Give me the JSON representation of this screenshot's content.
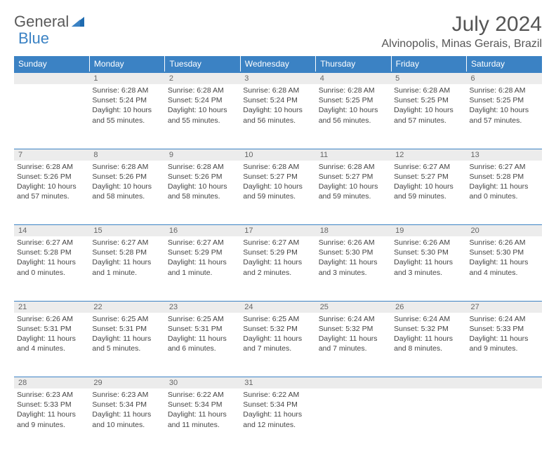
{
  "logo": {
    "text1": "General",
    "text2": "Blue"
  },
  "title": "July 2024",
  "location": "Alvinopolis, Minas Gerais, Brazil",
  "colors": {
    "header_bg": "#3b82c4",
    "header_text": "#ffffff",
    "daynum_bg": "#ececec",
    "border": "#3b82c4",
    "body_text": "#444444",
    "title_text": "#555555"
  },
  "typography": {
    "title_fontsize": 30,
    "location_fontsize": 16,
    "dayhead_fontsize": 12,
    "cell_fontsize": 10.5
  },
  "day_headers": [
    "Sunday",
    "Monday",
    "Tuesday",
    "Wednesday",
    "Thursday",
    "Friday",
    "Saturday"
  ],
  "weeks": [
    {
      "nums": [
        "",
        "1",
        "2",
        "3",
        "4",
        "5",
        "6"
      ],
      "cells": [
        null,
        {
          "sunrise": "Sunrise: 6:28 AM",
          "sunset": "Sunset: 5:24 PM",
          "daylight": "Daylight: 10 hours and 55 minutes."
        },
        {
          "sunrise": "Sunrise: 6:28 AM",
          "sunset": "Sunset: 5:24 PM",
          "daylight": "Daylight: 10 hours and 55 minutes."
        },
        {
          "sunrise": "Sunrise: 6:28 AM",
          "sunset": "Sunset: 5:24 PM",
          "daylight": "Daylight: 10 hours and 56 minutes."
        },
        {
          "sunrise": "Sunrise: 6:28 AM",
          "sunset": "Sunset: 5:25 PM",
          "daylight": "Daylight: 10 hours and 56 minutes."
        },
        {
          "sunrise": "Sunrise: 6:28 AM",
          "sunset": "Sunset: 5:25 PM",
          "daylight": "Daylight: 10 hours and 57 minutes."
        },
        {
          "sunrise": "Sunrise: 6:28 AM",
          "sunset": "Sunset: 5:25 PM",
          "daylight": "Daylight: 10 hours and 57 minutes."
        }
      ]
    },
    {
      "nums": [
        "7",
        "8",
        "9",
        "10",
        "11",
        "12",
        "13"
      ],
      "cells": [
        {
          "sunrise": "Sunrise: 6:28 AM",
          "sunset": "Sunset: 5:26 PM",
          "daylight": "Daylight: 10 hours and 57 minutes."
        },
        {
          "sunrise": "Sunrise: 6:28 AM",
          "sunset": "Sunset: 5:26 PM",
          "daylight": "Daylight: 10 hours and 58 minutes."
        },
        {
          "sunrise": "Sunrise: 6:28 AM",
          "sunset": "Sunset: 5:26 PM",
          "daylight": "Daylight: 10 hours and 58 minutes."
        },
        {
          "sunrise": "Sunrise: 6:28 AM",
          "sunset": "Sunset: 5:27 PM",
          "daylight": "Daylight: 10 hours and 59 minutes."
        },
        {
          "sunrise": "Sunrise: 6:28 AM",
          "sunset": "Sunset: 5:27 PM",
          "daylight": "Daylight: 10 hours and 59 minutes."
        },
        {
          "sunrise": "Sunrise: 6:27 AM",
          "sunset": "Sunset: 5:27 PM",
          "daylight": "Daylight: 10 hours and 59 minutes."
        },
        {
          "sunrise": "Sunrise: 6:27 AM",
          "sunset": "Sunset: 5:28 PM",
          "daylight": "Daylight: 11 hours and 0 minutes."
        }
      ]
    },
    {
      "nums": [
        "14",
        "15",
        "16",
        "17",
        "18",
        "19",
        "20"
      ],
      "cells": [
        {
          "sunrise": "Sunrise: 6:27 AM",
          "sunset": "Sunset: 5:28 PM",
          "daylight": "Daylight: 11 hours and 0 minutes."
        },
        {
          "sunrise": "Sunrise: 6:27 AM",
          "sunset": "Sunset: 5:28 PM",
          "daylight": "Daylight: 11 hours and 1 minute."
        },
        {
          "sunrise": "Sunrise: 6:27 AM",
          "sunset": "Sunset: 5:29 PM",
          "daylight": "Daylight: 11 hours and 1 minute."
        },
        {
          "sunrise": "Sunrise: 6:27 AM",
          "sunset": "Sunset: 5:29 PM",
          "daylight": "Daylight: 11 hours and 2 minutes."
        },
        {
          "sunrise": "Sunrise: 6:26 AM",
          "sunset": "Sunset: 5:30 PM",
          "daylight": "Daylight: 11 hours and 3 minutes."
        },
        {
          "sunrise": "Sunrise: 6:26 AM",
          "sunset": "Sunset: 5:30 PM",
          "daylight": "Daylight: 11 hours and 3 minutes."
        },
        {
          "sunrise": "Sunrise: 6:26 AM",
          "sunset": "Sunset: 5:30 PM",
          "daylight": "Daylight: 11 hours and 4 minutes."
        }
      ]
    },
    {
      "nums": [
        "21",
        "22",
        "23",
        "24",
        "25",
        "26",
        "27"
      ],
      "cells": [
        {
          "sunrise": "Sunrise: 6:26 AM",
          "sunset": "Sunset: 5:31 PM",
          "daylight": "Daylight: 11 hours and 4 minutes."
        },
        {
          "sunrise": "Sunrise: 6:25 AM",
          "sunset": "Sunset: 5:31 PM",
          "daylight": "Daylight: 11 hours and 5 minutes."
        },
        {
          "sunrise": "Sunrise: 6:25 AM",
          "sunset": "Sunset: 5:31 PM",
          "daylight": "Daylight: 11 hours and 6 minutes."
        },
        {
          "sunrise": "Sunrise: 6:25 AM",
          "sunset": "Sunset: 5:32 PM",
          "daylight": "Daylight: 11 hours and 7 minutes."
        },
        {
          "sunrise": "Sunrise: 6:24 AM",
          "sunset": "Sunset: 5:32 PM",
          "daylight": "Daylight: 11 hours and 7 minutes."
        },
        {
          "sunrise": "Sunrise: 6:24 AM",
          "sunset": "Sunset: 5:32 PM",
          "daylight": "Daylight: 11 hours and 8 minutes."
        },
        {
          "sunrise": "Sunrise: 6:24 AM",
          "sunset": "Sunset: 5:33 PM",
          "daylight": "Daylight: 11 hours and 9 minutes."
        }
      ]
    },
    {
      "nums": [
        "28",
        "29",
        "30",
        "31",
        "",
        "",
        ""
      ],
      "cells": [
        {
          "sunrise": "Sunrise: 6:23 AM",
          "sunset": "Sunset: 5:33 PM",
          "daylight": "Daylight: 11 hours and 9 minutes."
        },
        {
          "sunrise": "Sunrise: 6:23 AM",
          "sunset": "Sunset: 5:34 PM",
          "daylight": "Daylight: 11 hours and 10 minutes."
        },
        {
          "sunrise": "Sunrise: 6:22 AM",
          "sunset": "Sunset: 5:34 PM",
          "daylight": "Daylight: 11 hours and 11 minutes."
        },
        {
          "sunrise": "Sunrise: 6:22 AM",
          "sunset": "Sunset: 5:34 PM",
          "daylight": "Daylight: 11 hours and 12 minutes."
        },
        null,
        null,
        null
      ]
    }
  ]
}
